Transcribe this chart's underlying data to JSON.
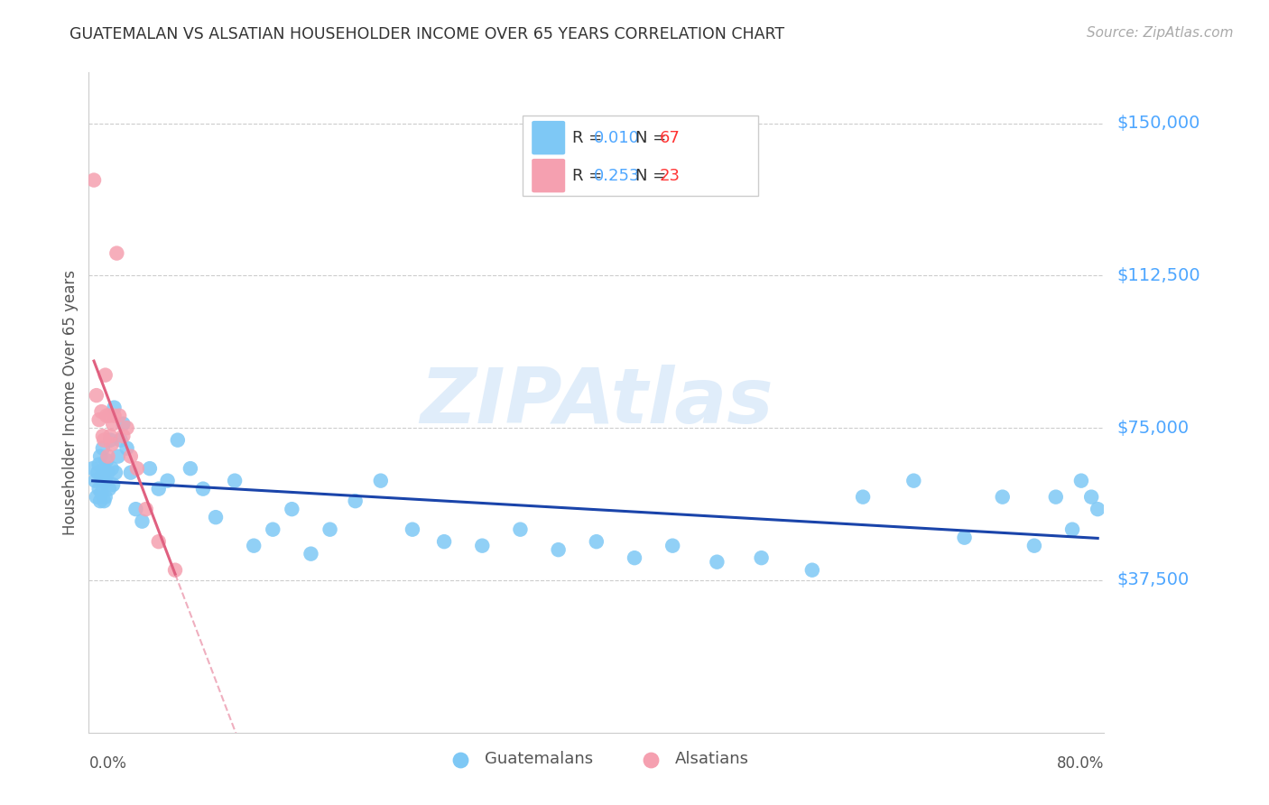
{
  "title": "GUATEMALAN VS ALSATIAN HOUSEHOLDER INCOME OVER 65 YEARS CORRELATION CHART",
  "source": "Source: ZipAtlas.com",
  "ylabel": "Householder Income Over 65 years",
  "xlim": [
    0.0,
    0.8
  ],
  "ylim": [
    0,
    162500
  ],
  "yticks": [
    37500,
    75000,
    112500,
    150000
  ],
  "ytick_labels": [
    "$37,500",
    "$75,000",
    "$112,500",
    "$150,000"
  ],
  "gridline_color": "#cccccc",
  "background_color": "#ffffff",
  "title_color": "#333333",
  "ytick_color": "#4da6ff",
  "source_color": "#aaaaaa",
  "guatemalan_color": "#7ec8f5",
  "alsatian_color": "#f5a0b0",
  "guatemalan_line_color": "#1a44aa",
  "alsatian_line_color": "#e06080",
  "watermark": "ZIPAtlas",
  "watermark_color": "#c8dff7",
  "legend_color_R": "#333333",
  "legend_color_val": "#4da6ff",
  "legend_color_N": "#333333",
  "legend_color_nval": "#ff3333",
  "guatemalan_x": [
    0.003,
    0.005,
    0.006,
    0.007,
    0.008,
    0.008,
    0.009,
    0.009,
    0.01,
    0.01,
    0.011,
    0.011,
    0.012,
    0.012,
    0.013,
    0.013,
    0.014,
    0.015,
    0.016,
    0.017,
    0.018,
    0.019,
    0.02,
    0.021,
    0.023,
    0.025,
    0.027,
    0.03,
    0.033,
    0.037,
    0.042,
    0.048,
    0.055,
    0.062,
    0.07,
    0.08,
    0.09,
    0.1,
    0.115,
    0.13,
    0.145,
    0.16,
    0.175,
    0.19,
    0.21,
    0.23,
    0.255,
    0.28,
    0.31,
    0.34,
    0.37,
    0.4,
    0.43,
    0.46,
    0.495,
    0.53,
    0.57,
    0.61,
    0.65,
    0.69,
    0.72,
    0.745,
    0.762,
    0.775,
    0.782,
    0.79,
    0.795
  ],
  "guatemalan_y": [
    65000,
    62000,
    58000,
    64000,
    66000,
    60000,
    68000,
    57000,
    63000,
    59000,
    70000,
    62000,
    65000,
    57000,
    62000,
    58000,
    67000,
    64000,
    60000,
    72000,
    65000,
    61000,
    80000,
    64000,
    68000,
    72000,
    76000,
    70000,
    64000,
    55000,
    52000,
    65000,
    60000,
    62000,
    72000,
    65000,
    60000,
    53000,
    62000,
    46000,
    50000,
    55000,
    44000,
    50000,
    57000,
    62000,
    50000,
    47000,
    46000,
    50000,
    45000,
    47000,
    43000,
    46000,
    42000,
    43000,
    40000,
    58000,
    62000,
    48000,
    58000,
    46000,
    58000,
    50000,
    62000,
    58000,
    55000
  ],
  "alsatian_x": [
    0.004,
    0.006,
    0.008,
    0.01,
    0.011,
    0.012,
    0.013,
    0.014,
    0.015,
    0.016,
    0.017,
    0.018,
    0.019,
    0.02,
    0.022,
    0.024,
    0.027,
    0.03,
    0.033,
    0.038,
    0.045,
    0.055,
    0.068
  ],
  "alsatian_y": [
    136000,
    83000,
    77000,
    79000,
    73000,
    72000,
    88000,
    78000,
    68000,
    78000,
    73000,
    71000,
    76000,
    78000,
    118000,
    78000,
    73000,
    75000,
    68000,
    65000,
    55000,
    47000,
    40000
  ],
  "alsatian_line_x0": 0.004,
  "alsatian_line_x1": 0.068,
  "alsatian_line_ext_x1": 0.25,
  "guatemalan_line_x0": 0.003,
  "guatemalan_line_x1": 0.795
}
